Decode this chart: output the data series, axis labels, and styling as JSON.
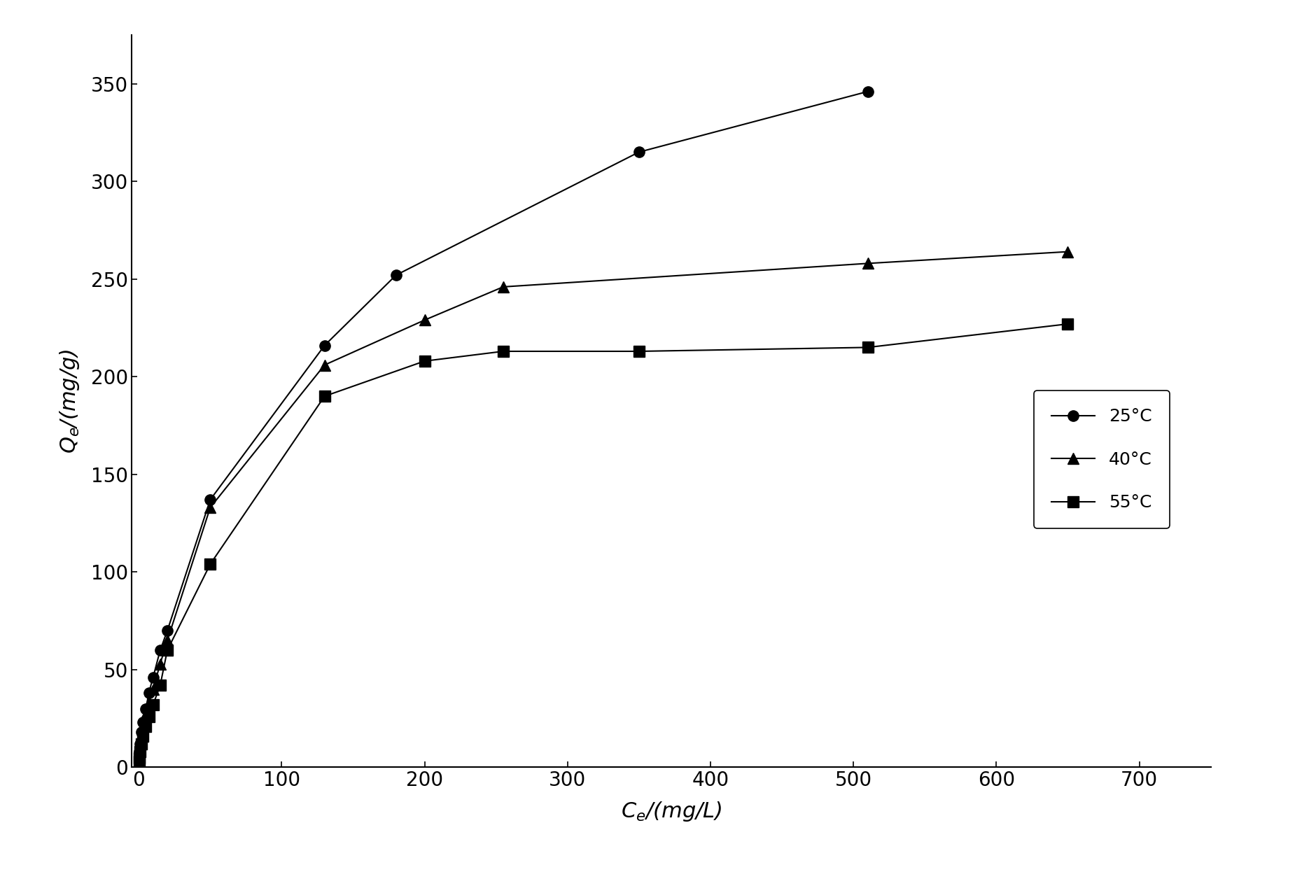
{
  "series": [
    {
      "label": "25°C",
      "marker": "o",
      "x": [
        0.2,
        0.5,
        1.0,
        2.0,
        3.0,
        5.0,
        7.0,
        10.0,
        15.0,
        20.0,
        50.0,
        130.0,
        180.0,
        350.0,
        510.0
      ],
      "y": [
        5.0,
        8.0,
        12.0,
        18.0,
        23.0,
        30.0,
        38.0,
        46.0,
        60.0,
        70.0,
        137.0,
        216.0,
        252.0,
        315.0,
        346.0
      ]
    },
    {
      "label": "40°C",
      "marker": "^",
      "x": [
        0.2,
        0.5,
        1.0,
        2.0,
        3.0,
        5.0,
        7.0,
        10.0,
        15.0,
        20.0,
        50.0,
        130.0,
        200.0,
        255.0,
        510.0,
        650.0
      ],
      "y": [
        4.0,
        7.0,
        10.0,
        16.0,
        20.0,
        27.0,
        33.0,
        40.0,
        53.0,
        65.0,
        133.0,
        206.0,
        229.0,
        246.0,
        258.0,
        264.0
      ]
    },
    {
      "label": "55°C",
      "marker": "s",
      "x": [
        0.2,
        0.5,
        1.0,
        2.0,
        3.0,
        5.0,
        7.0,
        10.0,
        15.0,
        20.0,
        50.0,
        130.0,
        200.0,
        255.0,
        350.0,
        510.0,
        650.0
      ],
      "y": [
        3.0,
        5.0,
        8.0,
        12.0,
        16.0,
        21.0,
        26.0,
        32.0,
        42.0,
        60.0,
        104.0,
        190.0,
        208.0,
        213.0,
        213.0,
        215.0,
        227.0
      ]
    }
  ],
  "xlabel": "$C_{/e}$(mg/L)",
  "ylabel": "$Q_{/e}$(mg/g)",
  "xlim": [
    -5,
    750
  ],
  "ylim": [
    0,
    375
  ],
  "xticks": [
    0,
    100,
    200,
    300,
    400,
    500,
    600,
    700
  ],
  "yticks": [
    0,
    50,
    100,
    150,
    200,
    250,
    300,
    350
  ],
  "line_color": "#000000",
  "marker_color": "#000000",
  "markersize": 11,
  "linewidth": 1.5,
  "legend_fontsize": 18,
  "axis_fontsize": 22,
  "tick_fontsize": 20,
  "figure_bgcolor": "#ffffff",
  "axes_bgcolor": "#ffffff"
}
